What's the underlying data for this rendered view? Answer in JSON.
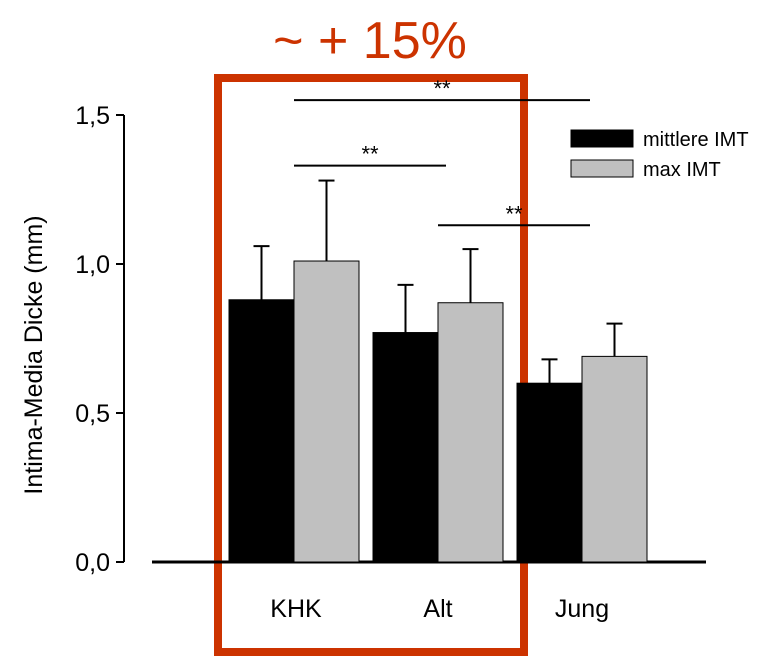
{
  "chart_data": {
    "type": "bar",
    "categories": [
      "KHK",
      "Alt",
      "Jung"
    ],
    "series": [
      {
        "name": "mittlere IMT",
        "values": [
          0.88,
          0.77,
          0.6
        ],
        "errors": [
          0.18,
          0.16,
          0.08
        ],
        "color": "#000000"
      },
      {
        "name": "max IMT",
        "values": [
          1.01,
          0.87,
          0.69
        ],
        "errors": [
          0.27,
          0.18,
          0.11
        ],
        "color": "#c0c0c0"
      }
    ],
    "title": "~ + 15%",
    "xlabel": "",
    "ylabel": "Intima-Media Dicke (mm)",
    "ylim": [
      0,
      1.5
    ],
    "yticks": [
      0,
      0.5,
      1.0,
      1.5
    ],
    "ytick_labels": [
      "0,0",
      "0,5",
      "1,0",
      "1,5"
    ],
    "significance": [
      {
        "label": "**",
        "from_category": "KHK",
        "to_category": "Alt",
        "y": 1.33
      },
      {
        "label": "**",
        "from_category": "Alt",
        "to_category": "Jung",
        "y": 1.13
      },
      {
        "label": "**",
        "from_category": "KHK",
        "to_category": "Jung",
        "y": 1.55
      }
    ],
    "highlight": {
      "categories": [
        "KHK",
        "Alt"
      ],
      "color": "#cc3300"
    },
    "legend_position": "top-right",
    "grid": false
  }
}
